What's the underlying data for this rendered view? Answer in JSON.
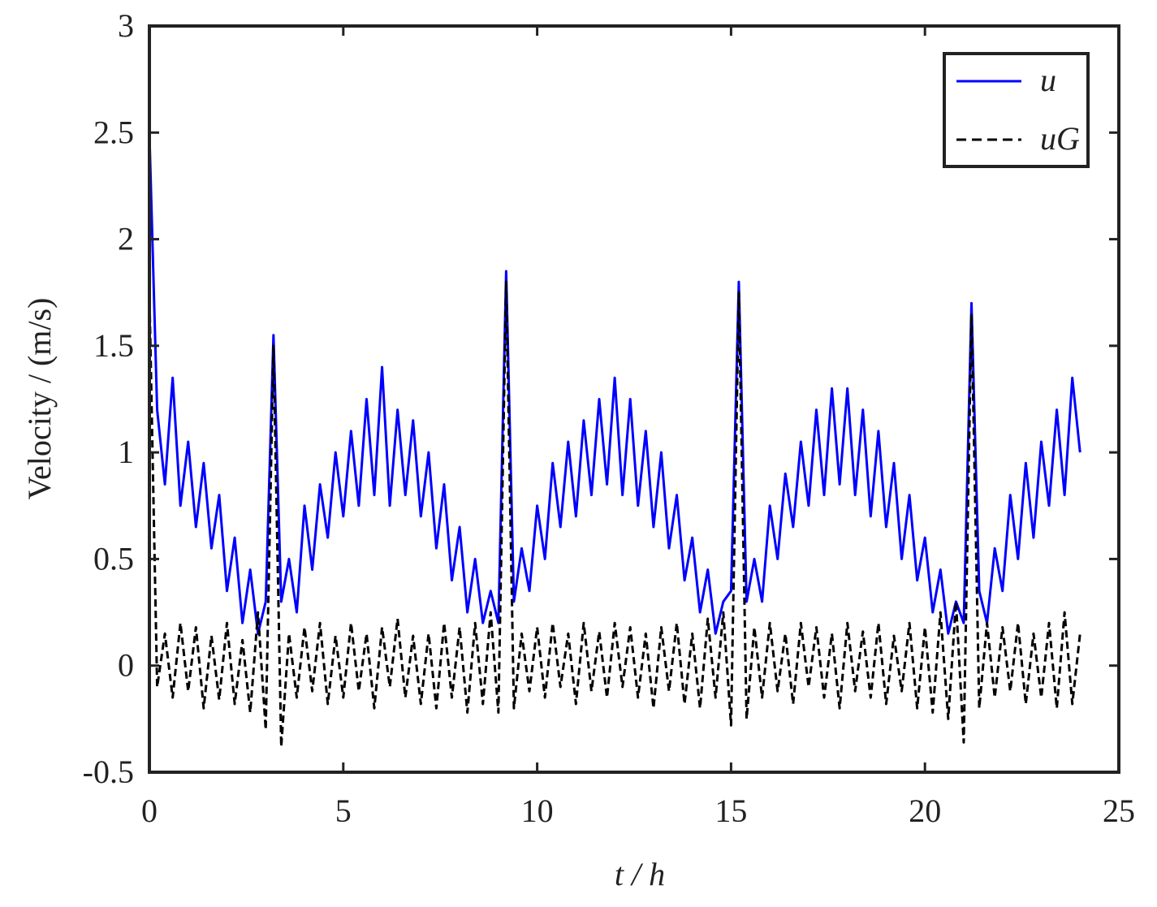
{
  "chart_data": {
    "type": "line",
    "xlabel": "t / h",
    "ylabel": "Velocity / (m/s)",
    "xlim": [
      0,
      25
    ],
    "xticks": [
      0,
      5,
      10,
      15,
      20,
      25
    ],
    "ylim": [
      -0.5,
      3
    ],
    "yticks": [
      -0.5,
      0,
      0.5,
      1,
      1.5,
      2,
      2.5,
      3
    ],
    "grid": false,
    "legend": "upper right",
    "x": [
      0,
      0.2,
      0.4,
      0.6,
      0.8,
      1,
      1.2,
      1.4,
      1.6,
      1.8,
      2,
      2.2,
      2.4,
      2.6,
      2.8,
      3,
      3.2,
      3.4,
      3.6,
      3.8,
      4,
      4.2,
      4.4,
      4.6,
      4.8,
      5,
      5.2,
      5.4,
      5.6,
      5.8,
      6,
      6.2,
      6.4,
      6.6,
      6.8,
      7,
      7.2,
      7.4,
      7.6,
      7.8,
      8,
      8.2,
      8.4,
      8.6,
      8.8,
      9,
      9.2,
      9.4,
      9.6,
      9.8,
      10,
      10.2,
      10.4,
      10.6,
      10.8,
      11,
      11.2,
      11.4,
      11.6,
      11.8,
      12,
      12.2,
      12.4,
      12.6,
      12.8,
      13,
      13.2,
      13.4,
      13.6,
      13.8,
      14,
      14.2,
      14.4,
      14.6,
      14.8,
      15,
      15.2,
      15.4,
      15.6,
      15.8,
      16,
      16.2,
      16.4,
      16.6,
      16.8,
      17,
      17.2,
      17.4,
      17.6,
      17.8,
      18,
      18.2,
      18.4,
      18.6,
      18.8,
      19,
      19.2,
      19.4,
      19.6,
      19.8,
      20,
      20.2,
      20.4,
      20.6,
      20.8,
      21,
      21.2,
      21.4,
      21.6,
      21.8,
      22,
      22.2,
      22.4,
      22.6,
      22.8,
      23,
      23.2,
      23.4,
      23.6,
      23.8,
      24
    ],
    "series": [
      {
        "name": "u",
        "color": "#0000ff",
        "dashed": false,
        "values": [
          2.5,
          1.2,
          0.85,
          1.35,
          0.75,
          1.05,
          0.65,
          0.95,
          0.55,
          0.8,
          0.35,
          0.6,
          0.2,
          0.45,
          0.15,
          0.3,
          1.55,
          0.3,
          0.5,
          0.25,
          0.75,
          0.45,
          0.85,
          0.6,
          1.0,
          0.7,
          1.1,
          0.75,
          1.25,
          0.8,
          1.4,
          0.75,
          1.2,
          0.8,
          1.15,
          0.7,
          1.0,
          0.55,
          0.85,
          0.4,
          0.65,
          0.25,
          0.5,
          0.2,
          0.35,
          0.2,
          1.85,
          0.3,
          0.55,
          0.35,
          0.75,
          0.5,
          0.95,
          0.65,
          1.05,
          0.7,
          1.15,
          0.8,
          1.25,
          0.85,
          1.35,
          0.8,
          1.25,
          0.75,
          1.1,
          0.65,
          1.0,
          0.55,
          0.8,
          0.4,
          0.6,
          0.25,
          0.45,
          0.15,
          0.3,
          0.35,
          1.8,
          0.3,
          0.5,
          0.3,
          0.75,
          0.5,
          0.9,
          0.65,
          1.05,
          0.75,
          1.2,
          0.8,
          1.3,
          0.85,
          1.3,
          0.8,
          1.2,
          0.7,
          1.1,
          0.65,
          0.95,
          0.5,
          0.8,
          0.4,
          0.6,
          0.25,
          0.45,
          0.15,
          0.3,
          0.2,
          1.7,
          0.35,
          0.2,
          0.55,
          0.35,
          0.8,
          0.5,
          0.95,
          0.6,
          1.05,
          0.75,
          1.2,
          0.8,
          1.35,
          1.0
        ]
      },
      {
        "name": "uG",
        "color": "#000000",
        "dashed": true,
        "values": [
          1.75,
          -0.1,
          0.15,
          -0.15,
          0.2,
          -0.12,
          0.18,
          -0.2,
          0.14,
          -0.16,
          0.2,
          -0.18,
          0.12,
          -0.22,
          0.25,
          -0.3,
          1.5,
          -0.38,
          0.15,
          -0.15,
          0.18,
          -0.12,
          0.2,
          -0.18,
          0.14,
          -0.15,
          0.2,
          -0.12,
          0.15,
          -0.2,
          0.18,
          -0.1,
          0.22,
          -0.15,
          0.14,
          -0.18,
          0.15,
          -0.2,
          0.2,
          -0.15,
          0.18,
          -0.22,
          0.2,
          -0.18,
          0.25,
          -0.22,
          1.8,
          -0.2,
          0.15,
          -0.12,
          0.18,
          -0.15,
          0.2,
          -0.1,
          0.15,
          -0.18,
          0.2,
          -0.12,
          0.16,
          -0.15,
          0.2,
          -0.1,
          0.18,
          -0.15,
          0.15,
          -0.2,
          0.18,
          -0.12,
          0.2,
          -0.18,
          0.15,
          -0.2,
          0.22,
          -0.15,
          0.25,
          -0.28,
          1.75,
          -0.25,
          0.18,
          -0.15,
          0.2,
          -0.12,
          0.15,
          -0.18,
          0.2,
          -0.1,
          0.18,
          -0.15,
          0.15,
          -0.2,
          0.2,
          -0.12,
          0.16,
          -0.15,
          0.2,
          -0.18,
          0.14,
          -0.12,
          0.2,
          -0.2,
          0.18,
          -0.22,
          0.25,
          -0.25,
          0.3,
          -0.36,
          1.65,
          -0.2,
          0.2,
          -0.15,
          0.18,
          -0.12,
          0.2,
          -0.18,
          0.15,
          -0.15,
          0.2,
          -0.2,
          0.25,
          -0.18,
          0.15
        ]
      }
    ]
  }
}
